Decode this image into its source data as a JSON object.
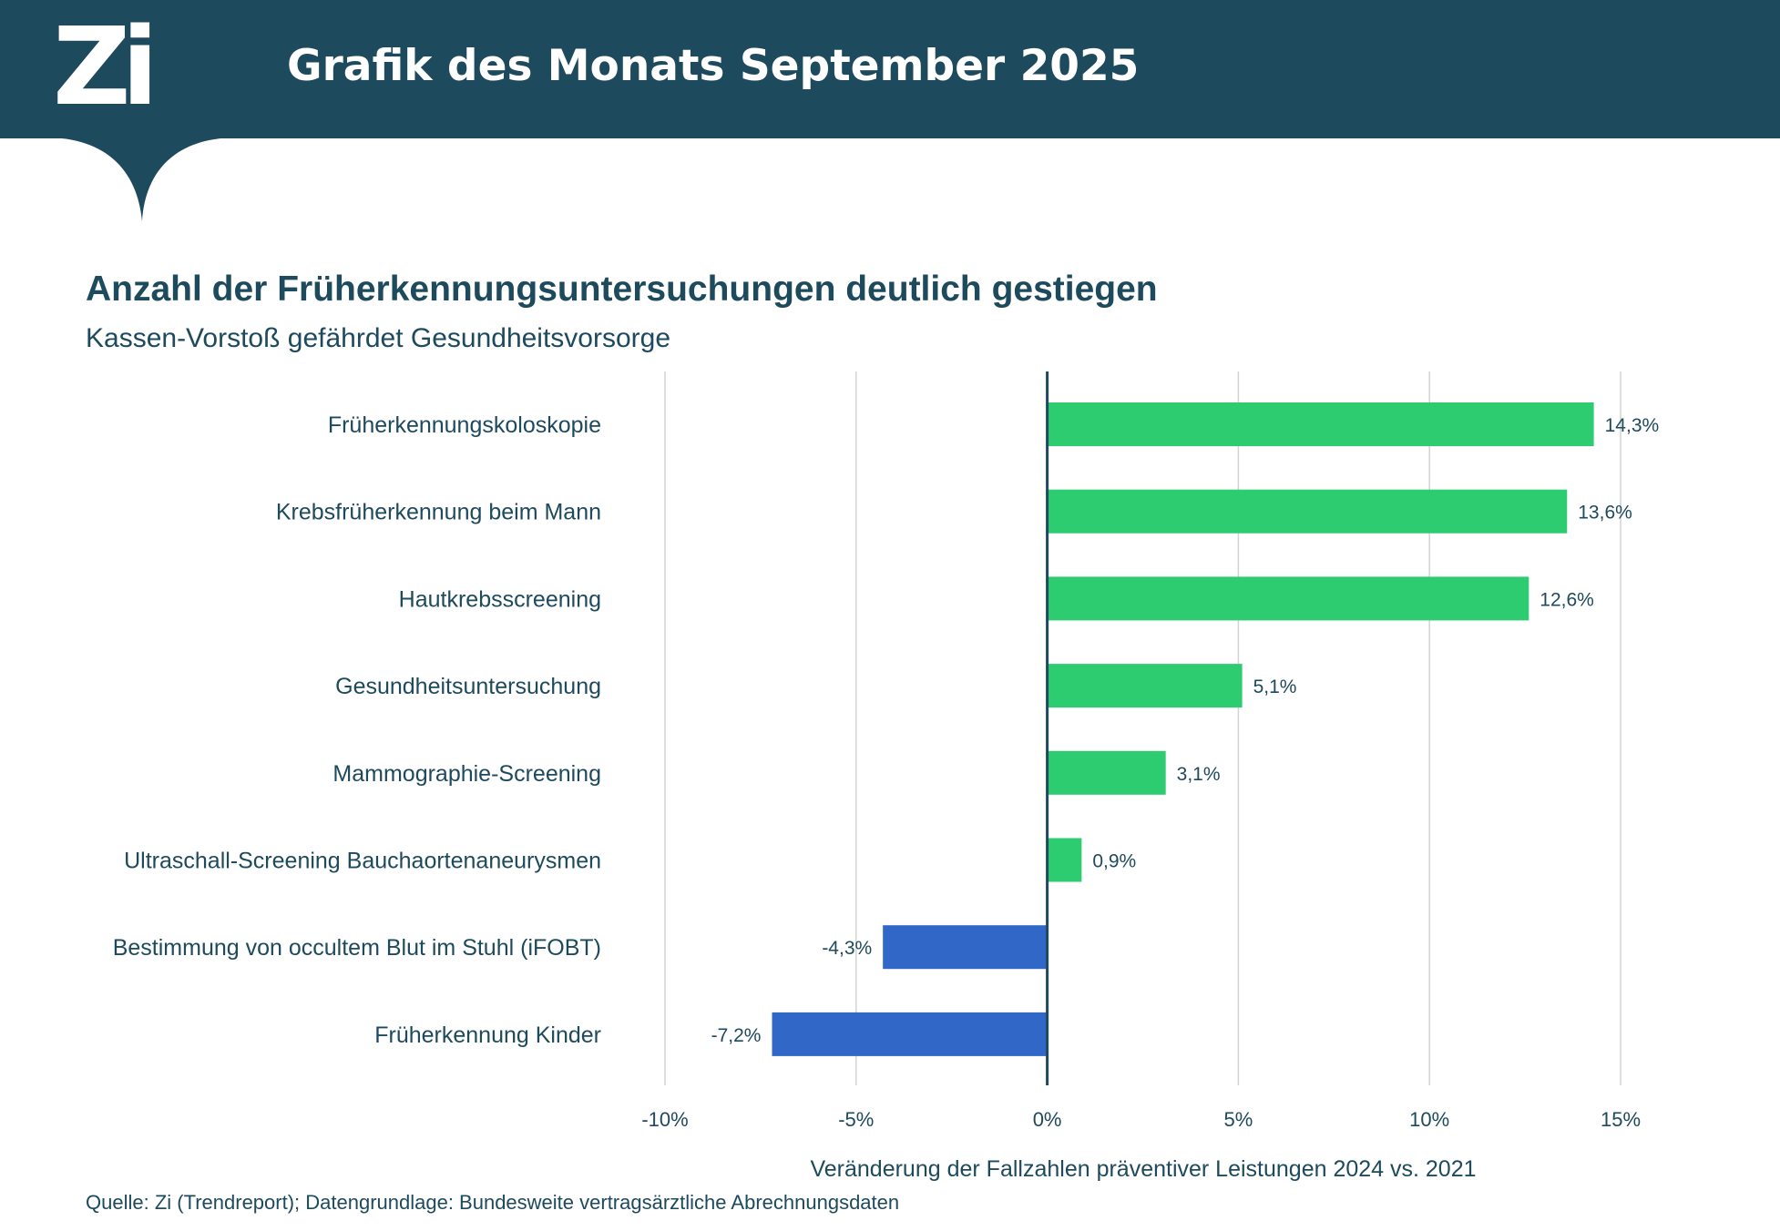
{
  "header": {
    "logo": "Zi",
    "title": "Grafik des Monats September 2025"
  },
  "colors": {
    "brand": "#1d4a5c",
    "positive": "#2ecc71",
    "negative": "#3168c8",
    "grid": "#d3d3d3",
    "text": "#1d4a5c"
  },
  "chart_data": {
    "type": "bar",
    "orientation": "horizontal",
    "title": "Anzahl der Früherkennungsuntersuchungen deutlich gestiegen",
    "subtitle": "Kassen-Vorstoß gefährdet Gesundheitsvorsorge",
    "xlabel": "Veränderung der Fallzahlen präventiver Leistungen 2024 vs. 2021",
    "ylabel": "",
    "xlim": [
      -10,
      15
    ],
    "xticks": [
      -10,
      -5,
      0,
      5,
      10,
      15
    ],
    "xtick_labels": [
      "-10%",
      "-5%",
      "0%",
      "5%",
      "10%",
      "15%"
    ],
    "grid": "vertical",
    "legend": "none",
    "categories": [
      "Früherkennungskoloskopie",
      "Krebsfrüherkennung beim Mann",
      "Hautkrebsscreening",
      "Gesundheitsuntersuchung",
      "Mammographie-Screening",
      "Ultraschall-Screening Bauchaortenaneurysmen",
      "Bestimmung von occultem Blut im Stuhl (iFOBT)",
      "Früherkennung Kinder"
    ],
    "values": [
      14.3,
      13.6,
      12.6,
      5.1,
      3.1,
      0.9,
      -4.3,
      -7.2
    ],
    "value_labels": [
      "14,3%",
      "13,6%",
      "12,6%",
      "5,1%",
      "3,1%",
      "0,9%",
      "-4,3%",
      "-7,2%"
    ]
  },
  "source": "Quelle: Zi (Trendreport); Datengrundlage: Bundesweite vertragsärztliche Abrechnungsdaten"
}
